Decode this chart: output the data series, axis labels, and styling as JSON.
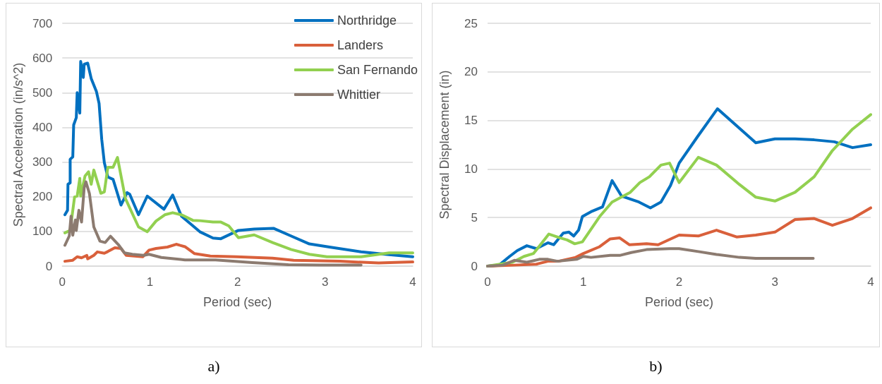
{
  "chart_data": [
    {
      "type": "line",
      "xlabel": "Period (sec)",
      "ylabel": "Spectral Acceleration (in/s^2)",
      "xlim": [
        0,
        4
      ],
      "xticks": [
        0,
        1,
        2,
        3,
        4
      ],
      "ylim": [
        0,
        700
      ],
      "yticks": [
        0,
        100,
        200,
        300,
        400,
        500,
        600,
        700
      ],
      "grid": "y",
      "legend": "top right",
      "marker": "none",
      "line_style": "solid",
      "annotations": [
        "a)"
      ],
      "series": [
        {
          "name": "Northridge",
          "color": "#0070c0",
          "x": [
            0.03,
            0.06,
            0.065,
            0.09,
            0.09,
            0.12,
            0.13,
            0.16,
            0.17,
            0.2,
            0.21,
            0.24,
            0.25,
            0.29,
            0.33,
            0.39,
            0.42,
            0.45,
            0.48,
            0.52,
            0.58,
            0.67,
            0.74,
            0.77,
            0.87,
            0.97,
            1.16,
            1.26,
            1.36,
            1.57,
            1.72,
            1.81,
            2.01,
            2.19,
            2.41,
            2.61,
            2.82,
            3.05,
            3.41,
            3.73,
            4.0
          ],
          "values": [
            148,
            161,
            236,
            240,
            308,
            315,
            407,
            428,
            500,
            441,
            590,
            544,
            582,
            585,
            541,
            503,
            469,
            366,
            298,
            257,
            250,
            176,
            212,
            207,
            148,
            202,
            164,
            205,
            144,
            99,
            81,
            79,
            103,
            107,
            109,
            87,
            64,
            55,
            41,
            33,
            27
          ]
        },
        {
          "name": "Landers",
          "color": "#d9603b",
          "x": [
            0.03,
            0.12,
            0.17,
            0.22,
            0.28,
            0.29,
            0.36,
            0.4,
            0.48,
            0.52,
            0.6,
            0.67,
            0.73,
            0.92,
            0.99,
            1.07,
            1.2,
            1.3,
            1.4,
            1.51,
            1.69,
            1.99,
            2.4,
            2.64,
            3.17,
            3.61,
            4.0
          ],
          "values": [
            14,
            17,
            27,
            24,
            31,
            21,
            31,
            41,
            37,
            42,
            53,
            51,
            31,
            27,
            46,
            51,
            55,
            63,
            56,
            36,
            29,
            27,
            23,
            17,
            14,
            9,
            12
          ]
        },
        {
          "name": "San Fernando",
          "color": "#92d050",
          "x": [
            0.03,
            0.09,
            0.14,
            0.17,
            0.2,
            0.21,
            0.26,
            0.3,
            0.33,
            0.36,
            0.44,
            0.48,
            0.52,
            0.58,
            0.63,
            0.72,
            0.87,
            0.97,
            1.07,
            1.17,
            1.26,
            1.37,
            1.49,
            1.57,
            1.72,
            1.81,
            1.9,
            2.01,
            2.19,
            2.4,
            2.61,
            2.82,
            3.02,
            3.41,
            3.73,
            4.0
          ],
          "values": [
            96,
            103,
            199,
            202,
            253,
            202,
            260,
            272,
            236,
            277,
            210,
            214,
            285,
            285,
            313,
            195,
            113,
            99,
            130,
            148,
            154,
            147,
            132,
            131,
            127,
            127,
            116,
            82,
            90,
            68,
            48,
            34,
            27,
            27,
            38,
            38
          ]
        },
        {
          "name": "Whittier",
          "color": "#8c7b70",
          "x": [
            0.03,
            0.08,
            0.1,
            0.12,
            0.15,
            0.16,
            0.19,
            0.22,
            0.25,
            0.27,
            0.31,
            0.36,
            0.43,
            0.49,
            0.55,
            0.64,
            0.71,
            0.8,
            0.93,
            0.99,
            1.13,
            1.4,
            1.75,
            2.17,
            2.58,
            2.94,
            3.41
          ],
          "values": [
            60,
            87,
            144,
            89,
            133,
            103,
            161,
            127,
            226,
            243,
            209,
            113,
            72,
            68,
            86,
            62,
            38,
            34,
            31,
            34,
            25,
            18,
            18,
            10,
            4,
            3,
            3
          ]
        }
      ]
    },
    {
      "type": "line",
      "xlabel": "Period (sec)",
      "ylabel": "Spectral Displacement (in)",
      "xlim": [
        0,
        4
      ],
      "xticks": [
        0,
        1,
        2,
        3,
        4
      ],
      "ylim": [
        0,
        25
      ],
      "yticks": [
        0,
        5,
        10,
        15,
        20,
        25
      ],
      "grid": "y",
      "marker": "none",
      "line_style": "solid",
      "annotations": [
        "b)"
      ],
      "series": [
        {
          "color": "#0070c0",
          "x": [
            0,
            0.12,
            0.23,
            0.31,
            0.41,
            0.51,
            0.63,
            0.69,
            0.79,
            0.85,
            0.9,
            0.95,
            0.99,
            1.08,
            1.2,
            1.3,
            1.4,
            1.58,
            1.7,
            1.81,
            1.91,
            2.0,
            2.19,
            2.4,
            2.8,
            3.0,
            3.21,
            3.41,
            3.62,
            3.81,
            4.0
          ],
          "values": [
            0,
            0.1,
            1.0,
            1.6,
            2.1,
            1.8,
            2.4,
            2.2,
            3.4,
            3.5,
            3.1,
            3.7,
            5.1,
            5.6,
            6.1,
            8.8,
            7.2,
            6.6,
            6.0,
            6.6,
            8.3,
            10.6,
            13.3,
            16.2,
            12.7,
            13.1,
            13.1,
            13.0,
            12.8,
            12.2,
            12.5
          ]
        },
        {
          "color": "#d9603b",
          "x": [
            0,
            0.28,
            0.51,
            0.63,
            0.74,
            0.92,
            1.0,
            1.17,
            1.28,
            1.38,
            1.48,
            1.66,
            1.78,
            2.0,
            2.2,
            2.39,
            2.6,
            2.8,
            3.0,
            3.21,
            3.41,
            3.6,
            3.81,
            4.0
          ],
          "values": [
            0,
            0.1,
            0.2,
            0.5,
            0.5,
            0.9,
            1.3,
            2.0,
            2.8,
            2.9,
            2.2,
            2.3,
            2.2,
            3.2,
            3.1,
            3.7,
            3.0,
            3.2,
            3.5,
            4.8,
            4.9,
            4.2,
            4.9,
            6.0
          ]
        },
        {
          "color": "#92d050",
          "x": [
            0,
            0.26,
            0.38,
            0.48,
            0.64,
            0.76,
            0.83,
            0.91,
            0.99,
            1.17,
            1.3,
            1.49,
            1.59,
            1.69,
            1.81,
            1.9,
            2.0,
            2.2,
            2.39,
            2.63,
            2.8,
            3.0,
            3.21,
            3.41,
            3.6,
            3.81,
            4.0
          ],
          "values": [
            0,
            0.4,
            1.0,
            1.3,
            3.3,
            2.9,
            2.7,
            2.3,
            2.5,
            5.1,
            6.6,
            7.6,
            8.6,
            9.2,
            10.4,
            10.6,
            8.6,
            11.2,
            10.4,
            8.4,
            7.1,
            6.7,
            7.6,
            9.2,
            11.9,
            14.1,
            15.6
          ]
        },
        {
          "color": "#8c7b70",
          "x": [
            0,
            0.16,
            0.28,
            0.41,
            0.54,
            0.63,
            0.73,
            0.93,
            1.0,
            1.08,
            1.28,
            1.38,
            1.5,
            1.66,
            1.9,
            2.0,
            2.2,
            2.39,
            2.63,
            2.8,
            3.0,
            3.21,
            3.4
          ],
          "values": [
            0,
            0.1,
            0.6,
            0.4,
            0.7,
            0.7,
            0.5,
            0.7,
            1.0,
            0.9,
            1.1,
            1.1,
            1.4,
            1.7,
            1.8,
            1.8,
            1.5,
            1.2,
            0.9,
            0.8,
            0.8,
            0.8,
            0.8
          ]
        }
      ]
    }
  ]
}
